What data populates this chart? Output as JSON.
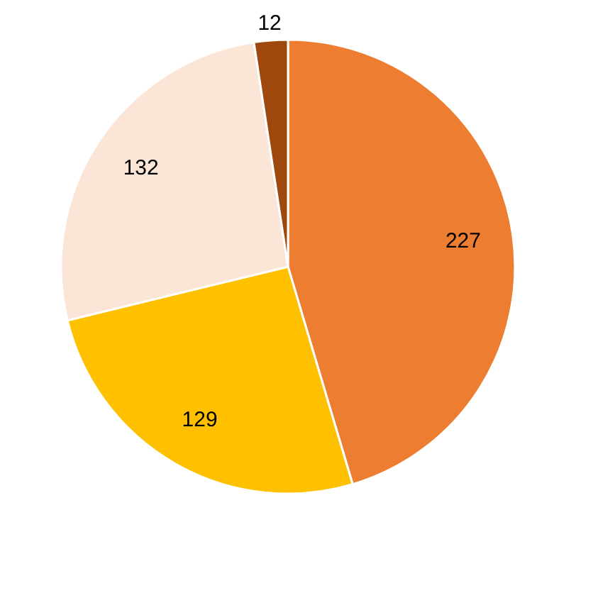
{
  "chart_data": {
    "type": "pie",
    "categories": [
      null,
      null,
      null,
      null
    ],
    "values": [
      227,
      129,
      132,
      12
    ],
    "colors": [
      "#ed7d31",
      "#ffc000",
      "#fbe5d6",
      "#9e480e"
    ],
    "data_labels": true,
    "legend": false
  }
}
